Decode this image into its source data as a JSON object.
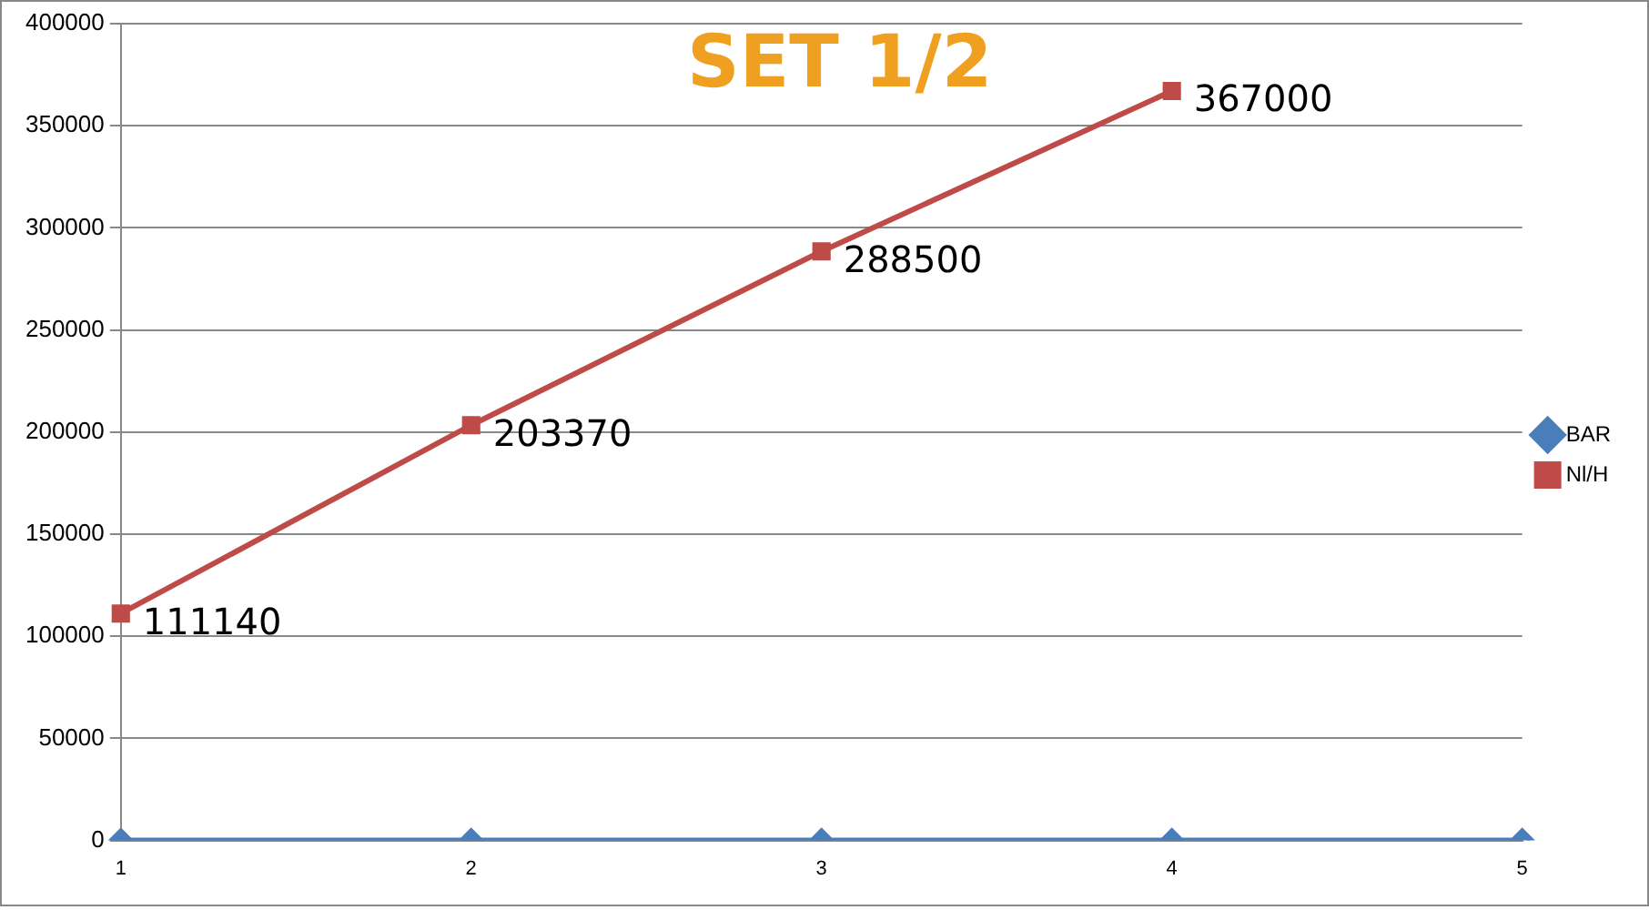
{
  "chart_data": {
    "type": "line",
    "title": "SET 1/2",
    "categories": [
      "1",
      "2",
      "3",
      "4",
      "5"
    ],
    "series": [
      {
        "name": "BAR",
        "color": "#4a7ebb",
        "marker": "diamond",
        "values": [
          0,
          0,
          0,
          0,
          0
        ]
      },
      {
        "name": "Nl/H",
        "color": "#be4b48",
        "marker": "square",
        "values": [
          111140,
          203370,
          288500,
          367000,
          null
        ],
        "value_labels": [
          "111140",
          "203370",
          "288500",
          "367000",
          null
        ]
      }
    ],
    "ylim": [
      0,
      400000
    ],
    "yticks": [
      0,
      50000,
      100000,
      150000,
      200000,
      250000,
      300000,
      350000,
      400000
    ],
    "grid": "y",
    "legend": "right"
  }
}
